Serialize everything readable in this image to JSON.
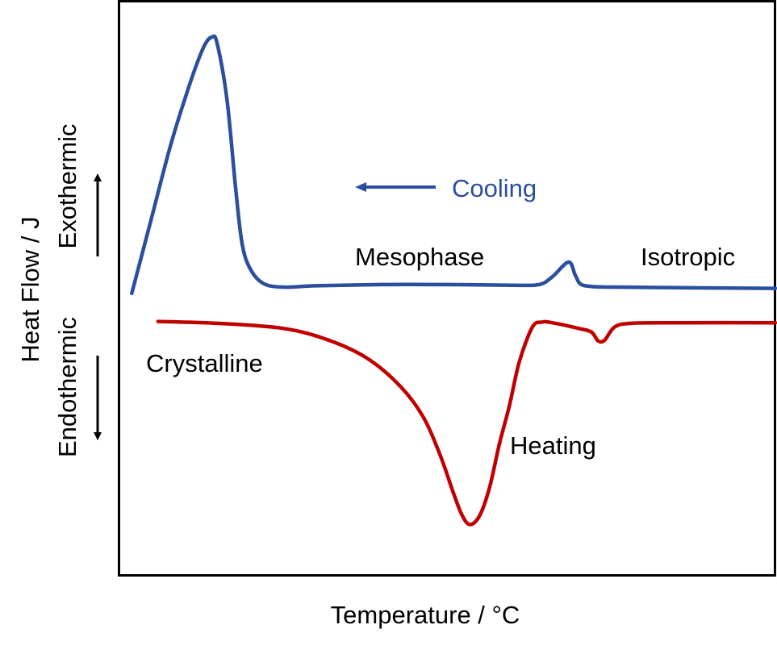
{
  "chart_data": {
    "type": "line",
    "title": "",
    "xlabel": "Temperature / °C",
    "ylabel": "Heat Flow  / J",
    "direction_up": "Exothermic",
    "direction_down": "Endothermic",
    "annotations": {
      "cooling": "Cooling",
      "heating": "Heating",
      "mesophase": "Mesophase",
      "isotropic": "Isotropic",
      "crystalline": "Crystalline"
    },
    "xlim": [
      0,
      100
    ],
    "ylim": [
      -40,
      40
    ],
    "grid": false,
    "series": [
      {
        "color": "#2b4f9e",
        "x": [
          2,
          5,
          8,
          11,
          13,
          14.2,
          15,
          16.5,
          17.8,
          18.8,
          20,
          22,
          25,
          30,
          40,
          50,
          60,
          64,
          66,
          68.5,
          69.5,
          70.3,
          72,
          75,
          85,
          100
        ],
        "y": [
          -1,
          11,
          23,
          33,
          38.5,
          40,
          39,
          30,
          16,
          7,
          3,
          0.6,
          0,
          0.2,
          0.4,
          0.4,
          0.3,
          0.4,
          1.6,
          4,
          2,
          0.5,
          0.1,
          0,
          -0.1,
          -0.2
        ]
      },
      {
        "color": "#c00000",
        "x": [
          6,
          15,
          25,
          32,
          38,
          43,
          46.5,
          49,
          51,
          52.3,
          53.5,
          55,
          56.5,
          58,
          59.5,
          61,
          63,
          64.5,
          66,
          70,
          72,
          73,
          74,
          75.5,
          78,
          85,
          100
        ],
        "y": [
          -5.5,
          -5.8,
          -6.6,
          -8.5,
          -11.5,
          -16,
          -21,
          -27,
          -33,
          -36.5,
          -38,
          -36.5,
          -32,
          -25,
          -19,
          -12,
          -6.4,
          -5.6,
          -5.7,
          -6.6,
          -7.2,
          -8.6,
          -8.5,
          -6.4,
          -5.8,
          -5.7,
          -5.7
        ]
      }
    ]
  }
}
